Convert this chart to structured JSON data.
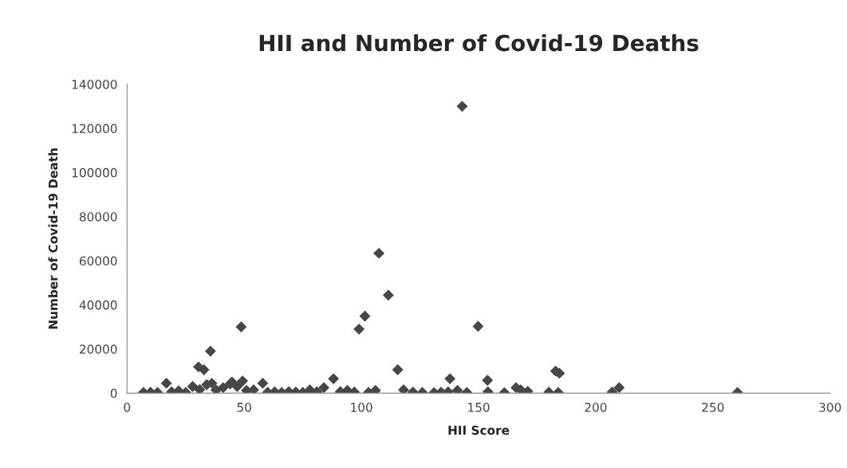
{
  "chart_data": {
    "type": "scatter",
    "title": "HII and Number of Covid-19 Deaths",
    "xlabel": "HII Score",
    "ylabel": "Number of Covid-19 Death",
    "xlim": [
      0,
      300
    ],
    "xticks": [
      0,
      50,
      100,
      150,
      200,
      250,
      300
    ],
    "ylim": [
      0,
      140000
    ],
    "yticks": [
      0,
      20000,
      40000,
      60000,
      80000,
      100000,
      120000,
      140000
    ],
    "grid": false,
    "marker": "diamond",
    "series": [
      {
        "color": "#474747",
        "x": [
          143,
          107.5,
          111.5,
          101.5,
          99,
          48.7,
          149.8,
          35.6,
          30.5,
          32.8,
          16.8,
          36.2,
          44.8,
          49.3,
          57.9,
          88.1,
          115.5,
          137.8,
          153.8,
          182.9,
          184.5,
          118,
          122,
          126,
          131,
          134,
          137,
          141,
          145,
          154,
          161,
          166,
          168,
          171,
          180,
          184,
          207,
          210,
          260.5,
          7,
          10,
          13,
          19,
          22,
          25,
          28,
          31,
          34,
          38,
          41,
          44,
          47,
          51,
          54,
          60,
          63,
          66,
          69,
          72,
          75,
          78,
          81,
          84,
          91,
          94,
          97,
          103,
          106
        ],
        "values": [
          130000,
          63400,
          44400,
          34900,
          29000,
          30000,
          30300,
          19000,
          11900,
          10600,
          4500,
          4500,
          5000,
          5500,
          4500,
          6500,
          10600,
          6500,
          5800,
          10000,
          9000,
          1500,
          500,
          300,
          200,
          400,
          600,
          1200,
          300,
          600,
          200,
          2500,
          1500,
          800,
          400,
          300,
          500,
          2500,
          300,
          300,
          400,
          300,
          600,
          1000,
          300,
          3000,
          1600,
          3800,
          1400,
          2500,
          4200,
          3000,
          1200,
          1500,
          400,
          600,
          300,
          700,
          500,
          300,
          1500,
          600,
          2500,
          700,
          1200,
          500,
          300,
          1200
        ]
      }
    ]
  }
}
